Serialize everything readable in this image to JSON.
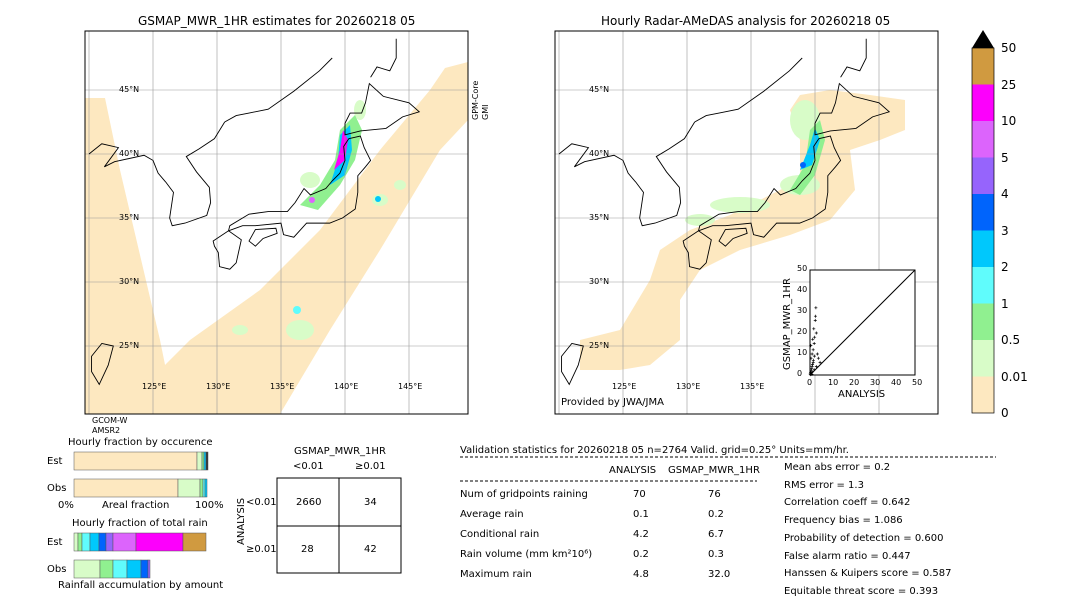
{
  "left_map": {
    "title": "GSMAP_MWR_1HR estimates for 20260218 05",
    "side_label_1": "GPM-Core",
    "side_label_2": "GMI",
    "bottom_label_1": "GCOM-W",
    "bottom_label_2": "AMSR2"
  },
  "right_map": {
    "title": "Hourly Radar-AMeDAS analysis for 20260218 05",
    "credit": "Provided by JWA/JMA"
  },
  "lat_labels": [
    "45°N",
    "40°N",
    "35°N",
    "30°N",
    "25°N"
  ],
  "lon_labels_left": [
    "125°E",
    "130°E",
    "135°E",
    "140°E",
    "145°E"
  ],
  "lon_labels_right": [
    "125°E",
    "130°E",
    "135°E"
  ],
  "colorbar": {
    "labels": [
      "0",
      "0.01",
      "0.5",
      "1",
      "2",
      "3",
      "4",
      "5",
      "10",
      "25",
      "50"
    ],
    "colors": [
      "#fde8c0",
      "#d8fcc8",
      "#90f090",
      "#60fcfc",
      "#00c8fc",
      "#0064fc",
      "#9664fc",
      "#dc64fc",
      "#fc00fc",
      "#d09a40"
    ],
    "extend": "max"
  },
  "chart_data": [
    {
      "type": "scatter",
      "xlabel": "ANALYSIS",
      "ylabel": "GSMAP_MWR_1HR",
      "xlim": [
        0,
        50
      ],
      "ylim": [
        0,
        50
      ],
      "ticks": [
        "0",
        "10",
        "20",
        "30",
        "40",
        "50"
      ],
      "points": [
        [
          0.1,
          0.5
        ],
        [
          0.3,
          1.2
        ],
        [
          0.5,
          2
        ],
        [
          0.8,
          3
        ],
        [
          1,
          4
        ],
        [
          1.2,
          5
        ],
        [
          1.5,
          6
        ],
        [
          0.5,
          8
        ],
        [
          1,
          10
        ],
        [
          1.5,
          12
        ],
        [
          2,
          15
        ],
        [
          2.2,
          18
        ],
        [
          1.8,
          22
        ],
        [
          2.5,
          26
        ],
        [
          2.8,
          32
        ],
        [
          3,
          20
        ],
        [
          3.5,
          10
        ],
        [
          4,
          8
        ],
        [
          4.8,
          6
        ],
        [
          0.2,
          0.2
        ],
        [
          0.6,
          0.8
        ],
        [
          1.1,
          1.5
        ],
        [
          2,
          2.5
        ],
        [
          3,
          4
        ],
        [
          0.4,
          14
        ],
        [
          1.3,
          17
        ],
        [
          2.6,
          28
        ],
        [
          0.9,
          0.3
        ],
        [
          1.6,
          7
        ],
        [
          2.1,
          9
        ]
      ]
    },
    {
      "type": "bar",
      "title": "Hourly fraction by occurence",
      "categories": [
        "Est",
        "Obs"
      ],
      "xlabel": "Areal fraction",
      "xlim_labels": [
        "0%",
        "100%"
      ]
    },
    {
      "type": "bar",
      "title": "Hourly fraction of total rain",
      "categories": [
        "Est",
        "Obs"
      ],
      "xlabel": "Rainfall accumulation by amount"
    },
    {
      "type": "table",
      "title": "GSMAP_MWR_1HR",
      "col_headers": [
        "<0.01",
        "≥0.01"
      ],
      "row_label": "ANALYSIS",
      "row_headers": [
        "<0.01",
        "≥0.01"
      ],
      "cells": [
        [
          "2660",
          "34"
        ],
        [
          "28",
          "42"
        ]
      ]
    }
  ],
  "stats": {
    "header": "Validation statistics for 20260218 05  n=2764 Valid. grid=0.25° Units=mm/hr.",
    "col1": "ANALYSIS",
    "col2": "GSMAP_MWR_1HR",
    "rows": [
      {
        "label": "Num of gridpoints raining",
        "a": "70",
        "g": "76"
      },
      {
        "label": "Average rain",
        "a": "0.1",
        "g": "0.2"
      },
      {
        "label": "Conditional rain",
        "a": "4.2",
        "g": "6.7"
      },
      {
        "label": "Rain volume (mm km²10⁶)",
        "a": "0.2",
        "g": "0.3"
      },
      {
        "label": "Maximum rain",
        "a": "4.8",
        "g": "32.0"
      }
    ],
    "scores": [
      "Mean abs error =    0.2",
      "RMS error =    1.3",
      "Correlation coeff =  0.642",
      "Frequency bias =  1.086",
      "Probability of detection =  0.600",
      "False alarm ratio =  0.447",
      "Hanssen & Kuipers score =  0.587",
      "Equitable threat score =  0.393"
    ]
  }
}
